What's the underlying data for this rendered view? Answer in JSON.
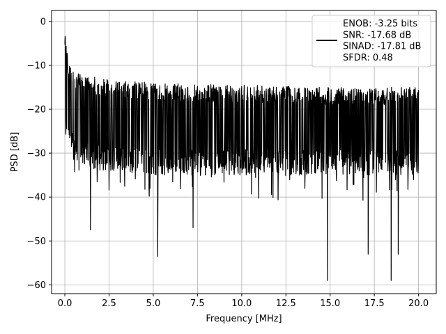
{
  "chart_data": {
    "type": "line",
    "title": "",
    "xlabel": "Frequency [MHz]",
    "ylabel": "PSD [dB]",
    "xlim": [
      -0.75,
      21.0
    ],
    "ylim": [
      -62.0,
      2.5
    ],
    "xticks": [
      0.0,
      2.5,
      5.0,
      7.5,
      10.0,
      12.5,
      15.0,
      17.5,
      20.0
    ],
    "xtick_labels": [
      "0.0",
      "2.5",
      "5.0",
      "7.5",
      "10.0",
      "12.5",
      "15.0",
      "17.5",
      "20.0"
    ],
    "yticks": [
      0,
      -10,
      -20,
      -30,
      -40,
      -50,
      -60
    ],
    "ytick_labels": [
      "0",
      "−10",
      "−20",
      "−30",
      "−40",
      "−50",
      "−60"
    ],
    "grid": true,
    "legend_position": "top-right",
    "series": [
      {
        "color": "#000000",
        "x_range": [
          0.0,
          20.0
        ],
        "envelope": {
          "x": [
            0.0,
            0.05,
            0.15,
            0.3,
            0.5,
            1.0,
            2.0,
            5.0,
            10.0,
            15.0,
            20.0
          ],
          "upper": [
            0.0,
            -3.0,
            -8.0,
            -10.0,
            -11.0,
            -12.0,
            -13.0,
            -14.0,
            -14.5,
            -15.0,
            -15.0
          ],
          "lower": [
            -2.0,
            -26.0,
            -28.0,
            -30.0,
            -32.0,
            -33.0,
            -34.0,
            -35.0,
            -35.0,
            -35.0,
            -35.0
          ]
        },
        "deep_dips": [
          {
            "x": 1.45,
            "y": -47.5
          },
          {
            "x": 5.25,
            "y": -53.5
          },
          {
            "x": 7.25,
            "y": -47.0
          },
          {
            "x": 14.85,
            "y": -59.0
          },
          {
            "x": 17.15,
            "y": -53.0
          },
          {
            "x": 18.45,
            "y": -59.0
          },
          {
            "x": 18.85,
            "y": -53.0
          }
        ]
      }
    ],
    "legend": {
      "lines": [
        "ENOB: -3.25 bits",
        "SNR: -17.68 dB",
        "SINAD: -17.81 dB",
        "SFDR: 0.48"
      ]
    }
  }
}
